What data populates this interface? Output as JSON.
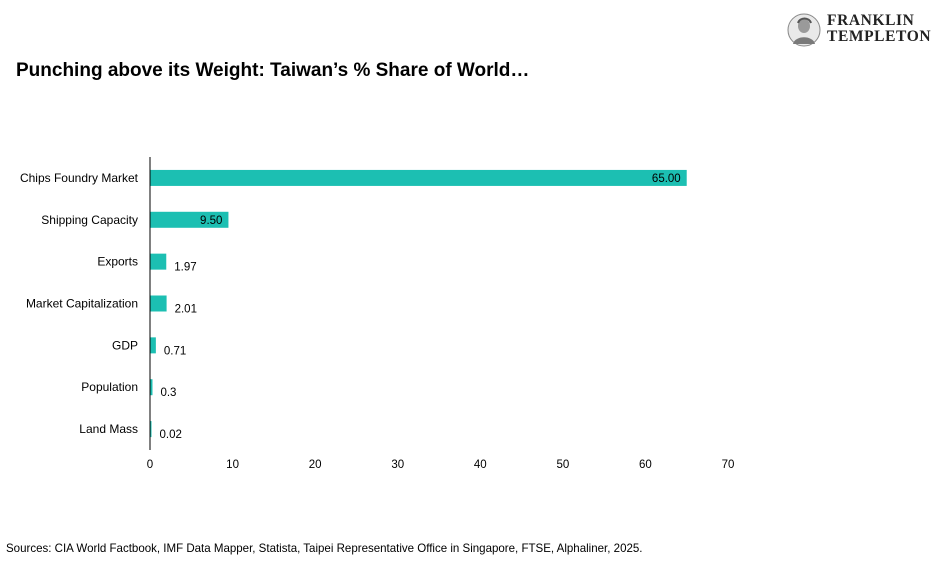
{
  "header": {
    "logo_line1": "FRANKLIN",
    "logo_line2": "TEMPLETON",
    "title": "Punching above its Weight: Taiwan’s % Share of World…"
  },
  "footer": {
    "source": "Sources: CIA World Factbook, IMF Data Mapper, Statista, Taipei Representative Office in Singapore, FTSE, Alphaliner, 2025."
  },
  "colors": {
    "bar": "#1cbfb2",
    "axis": "#000000"
  },
  "chart_data": {
    "type": "bar",
    "orientation": "horizontal",
    "title": "Punching above its Weight: Taiwan’s % Share of World…",
    "xlabel": "",
    "ylabel": "",
    "xlim": [
      0,
      70
    ],
    "xticks": [
      0,
      10,
      20,
      30,
      40,
      50,
      60,
      70
    ],
    "grid": false,
    "categories": [
      "Chips Foundry Market",
      "Shipping Capacity",
      "Exports",
      "Market Capitalization",
      "GDP",
      "Population",
      "Land Mass"
    ],
    "values": [
      65.0,
      9.5,
      1.97,
      2.01,
      0.71,
      0.3,
      0.02
    ],
    "data_labels": [
      "65.00",
      "9.50",
      "1.97",
      "2.01",
      "0.71",
      "0.3",
      "0.02"
    ]
  }
}
